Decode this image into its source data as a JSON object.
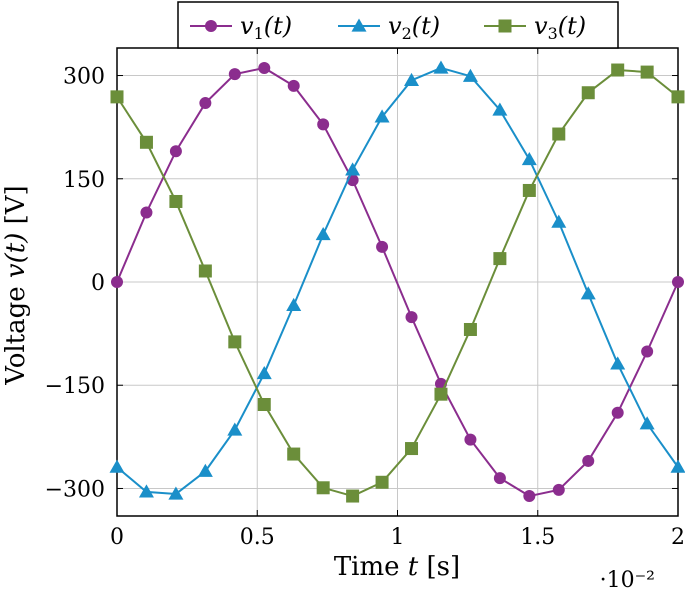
{
  "chart_data": {
    "type": "line",
    "xlabel": "Time t [s]",
    "ylabel": "Voltage v(t) [V]",
    "x_multiplier": "·10⁻²",
    "xlim": [
      0,
      2
    ],
    "ylim": [
      -340,
      340
    ],
    "xticks": [
      0,
      0.5,
      1,
      1.5,
      2
    ],
    "xtick_labels": [
      "0",
      "0.5",
      "1",
      "1.5",
      "2"
    ],
    "yticks": [
      -300,
      -150,
      0,
      150,
      300
    ],
    "ytick_labels": [
      "−300",
      "−150",
      "0",
      "150",
      "300"
    ],
    "grid": true,
    "legend_position": "top-center",
    "x": [
      0,
      0.105,
      0.21,
      0.315,
      0.42,
      0.525,
      0.63,
      0.735,
      0.84,
      0.945,
      1.05,
      1.155,
      1.26,
      1.365,
      1.47,
      1.575,
      1.68,
      1.785,
      1.89,
      2.0
    ],
    "series": [
      {
        "name": "v1(t)",
        "label_base": "v",
        "label_sub": "1",
        "label_tail": "(t)",
        "color": "#8b2d8e",
        "marker": "circle",
        "values": [
          0,
          101,
          190,
          260,
          302,
          311,
          285,
          229,
          148,
          51,
          -51,
          -148,
          -229,
          -285,
          -311,
          -302,
          -260,
          -190,
          -101,
          0
        ]
      },
      {
        "name": "v2(t)",
        "label_base": "v",
        "label_sub": "2",
        "label_tail": "(t)",
        "color": "#1a8fc9",
        "marker": "triangle",
        "values": [
          -269,
          -305,
          -308,
          -275,
          -215,
          -133,
          -34,
          69,
          163,
          240,
          293,
          311,
          299,
          250,
          178,
          87,
          -17,
          -119,
          -206,
          -269
        ]
      },
      {
        "name": "v3(t)",
        "label_base": "v",
        "label_sub": "3",
        "label_tail": "(t)",
        "color": "#6b8e3a",
        "marker": "square",
        "values": [
          269,
          203,
          117,
          16,
          -87,
          -178,
          -250,
          -299,
          -311,
          -291,
          -242,
          -163,
          -69,
          34,
          133,
          215,
          275,
          308,
          305,
          269
        ]
      }
    ]
  }
}
